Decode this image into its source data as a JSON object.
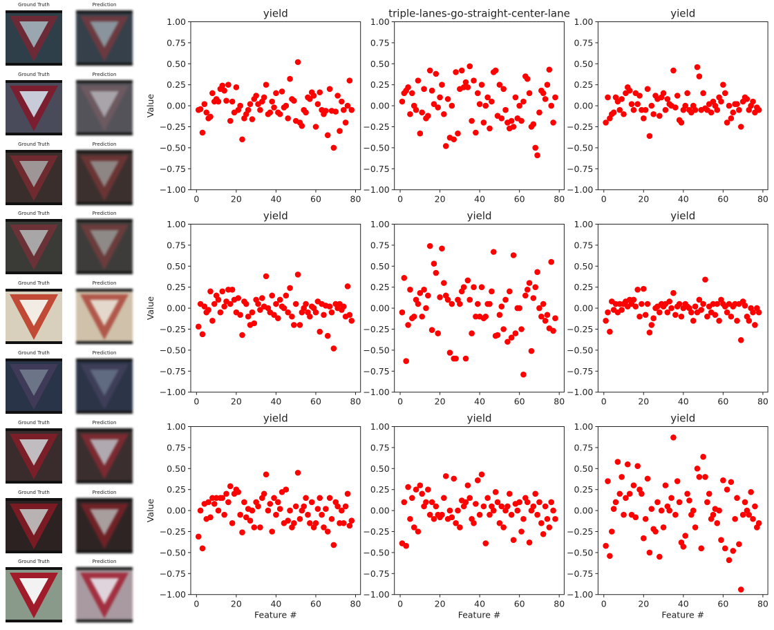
{
  "thumbnails": {
    "gt_label": "Ground Truth",
    "pred_label": "Prediction",
    "rows": [
      {
        "bg": "#2f3f4a",
        "sign": "#6b2a36",
        "inner": "#9aa7b0",
        "pbg": "#35404a",
        "psign": "#6a3a40",
        "pinner": "#8a949c"
      },
      {
        "bg": "#4a4b5a",
        "sign": "#7a1e30",
        "inner": "#c8ccd8",
        "pbg": "#55535a",
        "psign": "#6c5a60",
        "pinner": "#a8a4aa"
      },
      {
        "bg": "#3a2e2c",
        "sign": "#6e2a2e",
        "inner": "#9e9696",
        "pbg": "#3c302e",
        "psign": "#6a3434",
        "pinner": "#8e8684"
      },
      {
        "bg": "#3a3a36",
        "sign": "#6a3236",
        "inner": "#a8a6a6",
        "pbg": "#3e3c3a",
        "psign": "#6a3c3c",
        "pinner": "#8e8a88"
      },
      {
        "bg": "#d8d0bc",
        "sign": "#c04a36",
        "inner": "#f2ece4",
        "pbg": "#cfc1aa",
        "psign": "#b0584a",
        "pinner": "#e4d8cc"
      },
      {
        "bg": "#2a3448",
        "sign": "#3e3a58",
        "inner": "#6c7488",
        "pbg": "#2c3448",
        "psign": "#3e3e58",
        "pinner": "#606a80"
      },
      {
        "bg": "#3a2c2c",
        "sign": "#7a1e28",
        "inner": "#c0bcc0",
        "pbg": "#3a2e2e",
        "psign": "#7a2a30",
        "pinner": "#b0aab0"
      },
      {
        "bg": "#2c2222",
        "sign": "#7a1a22",
        "inner": "#b8b2b2",
        "pbg": "#2e2424",
        "psign": "#6e2226",
        "pinner": "#a89e9e"
      },
      {
        "bg": "#8a9a8a",
        "sign": "#a01c2a",
        "inner": "#f2f2f2",
        "pbg": "#a89aa0",
        "psign": "#a23040",
        "pinner": "#e0d4dc"
      }
    ]
  },
  "chart_data": [
    {
      "type": "scatter",
      "title": "yield",
      "ylabel": "Value",
      "xlabel": "",
      "x_start": 1,
      "xlim": [
        -2.9,
        82.5
      ],
      "ylim": [
        -1,
        1
      ],
      "xticks": [
        0,
        20,
        40,
        60,
        80
      ],
      "yticks": [
        "-1.00",
        "-0.75",
        "-0.50",
        "-0.25",
        "0.00",
        "0.25",
        "0.50",
        "0.75",
        "1.00"
      ],
      "color": "#ff0000",
      "values": [
        -0.05,
        -0.04,
        -0.32,
        0.02,
        -0.08,
        -0.15,
        -0.13,
        0.15,
        0.05,
        0.08,
        0.05,
        0.2,
        0.24,
        0.18,
        0.06,
        0.25,
        -0.18,
        0.05,
        -0.08,
        0.22,
        -0.05,
        0.0,
        -0.4,
        -0.15,
        -0.1,
        -0.05,
        0.02,
        -0.16,
        0.08,
        0.12,
        0.02,
        -0.05,
        0.05,
        0.1,
        0.25,
        -0.1,
        -0.08,
        0.05,
        -0.02,
        0.15,
        -0.08,
        -0.1,
        0.17,
        -0.02,
        0.0,
        -0.15,
        0.32,
        0.08,
        0.06,
        -0.18,
        0.52,
        -0.2,
        -0.24,
        -0.05,
        -0.08,
        0.1,
        0.08,
        0.16,
        0.12,
        -0.25,
        0.02,
        0.16,
        -0.05,
        -0.1,
        -0.06,
        -0.35,
        0.2,
        -0.06,
        -0.5,
        -0.07,
        0.12,
        -0.3,
        0.05,
        -0.05,
        -0.2,
        0.0,
        0.3,
        -0.05
      ]
    },
    {
      "type": "scatter",
      "title": "triple-lanes-go-straight-center-lane",
      "ylabel": "",
      "xlabel": "",
      "x_start": 1,
      "xlim": [
        -2.9,
        82.5
      ],
      "ylim": [
        -1,
        1
      ],
      "xticks": [
        0,
        20,
        40,
        60,
        80
      ],
      "yticks": [
        "-1.00",
        "-0.75",
        "-0.50",
        "-0.25",
        "0.00",
        "0.25",
        "0.50",
        "0.75",
        "1.00"
      ],
      "color": "#ff0000",
      "values": [
        0.05,
        0.15,
        0.18,
        0.22,
        -0.1,
        0.15,
        0.0,
        -0.05,
        0.3,
        -0.33,
        -0.08,
        0.2,
        -0.15,
        -0.12,
        0.42,
        0.18,
        0.02,
        0.38,
        -0.02,
        0.1,
        0.25,
        -0.1,
        -0.48,
        0.08,
        -0.38,
        0.0,
        -0.4,
        0.4,
        -0.33,
        0.2,
        0.42,
        0.22,
        0.28,
        0.22,
        0.47,
        -0.18,
        0.3,
        -0.32,
        0.15,
        0.02,
        0.25,
        -0.2,
        0.0,
        0.1,
        -0.27,
        0.05,
        0.4,
        0.42,
        -0.12,
        0.25,
        -0.15,
        0.2,
        -0.05,
        -0.2,
        -0.27,
        -0.18,
        -0.25,
        0.1,
        -0.15,
        0.0,
        -0.18,
        0.05,
        0.35,
        0.32,
        0.15,
        -0.25,
        -0.22,
        -0.5,
        -0.59,
        -0.08,
        0.18,
        0.15,
        0.08,
        0.25,
        0.43,
        0.0,
        -0.2,
        0.1
      ]
    },
    {
      "type": "scatter",
      "title": "yield",
      "ylabel": "",
      "xlabel": "",
      "x_start": 1,
      "xlim": [
        -2.9,
        82.5
      ],
      "ylim": [
        -1,
        1
      ],
      "xticks": [
        0,
        20,
        40,
        60,
        80
      ],
      "yticks": [
        "-1.00",
        "-0.75",
        "-0.50",
        "-0.25",
        "0.00",
        "0.25",
        "0.50",
        "0.75",
        "1.00"
      ],
      "color": "#ff0000",
      "values": [
        -0.2,
        0.1,
        -0.15,
        -0.1,
        -0.08,
        0.1,
        0.05,
        -0.05,
        0.08,
        -0.1,
        0.15,
        0.22,
        0.18,
        0.02,
        -0.05,
        0.15,
        0.02,
        0.12,
        -0.05,
        -0.15,
        -0.05,
        0.2,
        -0.36,
        0.0,
        -0.1,
        0.12,
        0.08,
        -0.12,
        0.1,
        0.15,
        -0.05,
        0.08,
        0.02,
        0.0,
        0.42,
        -0.02,
        0.12,
        -0.17,
        -0.2,
        -0.05,
        0.0,
        0.15,
        -0.05,
        -0.08,
        0.0,
        -0.05,
        0.46,
        0.35,
        -0.05,
        0.15,
        -0.03,
        -0.05,
        0.02,
        -0.08,
        0.05,
        0.0,
        -0.05,
        0.1,
        0.05,
        0.25,
        0.15,
        -0.2,
        0.0,
        -0.15,
        -0.08,
        0.02,
        0.02,
        -0.05,
        -0.25,
        0.05,
        0.1,
        0.08,
        -0.05,
        0.0,
        0.05,
        -0.08,
        -0.02,
        -0.05
      ]
    },
    {
      "type": "scatter",
      "title": "yield",
      "ylabel": "Value",
      "xlabel": "",
      "x_start": 1,
      "xlim": [
        -2.9,
        82.5
      ],
      "ylim": [
        -1,
        1
      ],
      "xticks": [
        0,
        20,
        40,
        60,
        80
      ],
      "yticks": [
        "-1.00",
        "-0.75",
        "-0.50",
        "-0.25",
        "0.00",
        "0.25",
        "0.50",
        "0.75",
        "1.00"
      ],
      "color": "#ff0000",
      "values": [
        -0.22,
        0.05,
        -0.31,
        0.02,
        -0.05,
        -0.02,
        0.2,
        -0.15,
        0.05,
        0.15,
        0.1,
        -0.05,
        0.2,
        0.02,
        0.08,
        0.22,
        0.05,
        0.22,
        0.1,
        -0.05,
        0.12,
        -0.08,
        -0.32,
        0.08,
        0.05,
        -0.1,
        -0.2,
        -0.05,
        -0.18,
        0.1,
        0.05,
        -0.02,
        0.12,
        0.02,
        0.38,
        0.0,
        -0.05,
        0.15,
        -0.08,
        0.05,
        -0.12,
        0.1,
        0.02,
        0.0,
        0.15,
        -0.05,
        0.24,
        -0.1,
        -0.2,
        0.05,
        0.4,
        -0.2,
        -0.05,
        0.0,
        0.05,
        -0.05,
        -0.1,
        0.02,
        0.0,
        -0.05,
        0.08,
        -0.28,
        0.05,
        -0.08,
        0.03,
        -0.33,
        0.02,
        -0.05,
        -0.48,
        0.05,
        0.0,
        0.05,
        -0.02,
        0.02,
        -0.1,
        0.26,
        -0.08,
        -0.15
      ]
    },
    {
      "type": "scatter",
      "title": "yield",
      "ylabel": "",
      "xlabel": "",
      "x_start": 1,
      "xlim": [
        -2.9,
        82.5
      ],
      "ylim": [
        -1,
        1
      ],
      "xticks": [
        0,
        20,
        40,
        60,
        80
      ],
      "yticks": [
        "-1.00",
        "-0.75",
        "-0.50",
        "-0.25",
        "0.00",
        "0.25",
        "0.50",
        "0.75",
        "1.00"
      ],
      "color": "#ff0000",
      "values": [
        -0.05,
        0.36,
        -0.63,
        -0.2,
        0.22,
        -0.12,
        -0.1,
        0.1,
        0.05,
        0.18,
        -0.1,
        0.22,
        0.0,
        0.15,
        0.74,
        -0.26,
        0.53,
        0.42,
        -0.3,
        0.13,
        0.71,
        0.3,
        0.15,
        0.1,
        -0.53,
        0.05,
        -0.6,
        -0.6,
        0.1,
        0.05,
        0.2,
        0.25,
        -0.6,
        0.33,
        0.1,
        -0.3,
        0.25,
        -0.1,
        0.05,
        -0.1,
        0.25,
        -0.12,
        -0.1,
        0.05,
        0.05,
        0.2,
        0.67,
        -0.33,
        -0.32,
        -0.08,
        0.02,
        -0.25,
        0.1,
        -0.4,
        0.2,
        -0.35,
        0.63,
        -0.3,
        0.0,
        0.0,
        -0.25,
        -0.79,
        0.15,
        0.22,
        0.3,
        -0.51,
        0.12,
        0.25,
        0.43,
        0.0,
        -0.1,
        0.05,
        -0.15,
        -0.08,
        -0.24,
        0.55,
        -0.27,
        -0.12
      ]
    },
    {
      "type": "scatter",
      "title": "yield",
      "ylabel": "",
      "xlabel": "",
      "x_start": 1,
      "xlim": [
        -2.9,
        82.5
      ],
      "ylim": [
        -1,
        1
      ],
      "xticks": [
        0,
        20,
        40,
        60,
        80
      ],
      "yticks": [
        "-1.00",
        "-0.75",
        "-0.50",
        "-0.25",
        "0.00",
        "0.25",
        "0.50",
        "0.75",
        "1.00"
      ],
      "color": "#ff0000",
      "values": [
        -0.15,
        -0.05,
        -0.28,
        0.08,
        -0.02,
        0.05,
        -0.05,
        0.05,
        -0.02,
        0.05,
        0.08,
        0.02,
        0.1,
        0.05,
        0.1,
        0.02,
        0.22,
        -0.1,
        0.05,
        0.23,
        -0.08,
        0.05,
        -0.29,
        -0.2,
        -0.12,
        0.0,
        0.02,
        -0.05,
        0.05,
        0.02,
        0.05,
        -0.05,
        0.08,
        0.0,
        0.18,
        -0.08,
        0.02,
        0.05,
        -0.1,
        0.0,
        0.05,
        0.02,
        0.0,
        -0.05,
        -0.15,
        0.02,
        -0.05,
        0.1,
        -0.02,
        0.05,
        0.34,
        -0.1,
        0.02,
        -0.05,
        0.05,
        -0.08,
        0.05,
        -0.15,
        0.1,
        0.05,
        0.02,
        -0.05,
        0.05,
        -0.1,
        0.02,
        0.05,
        -0.15,
        0.05,
        -0.38,
        0.08,
        0.03,
        -0.1,
        -0.15,
        0.0,
        -0.05,
        -0.2,
        0.0,
        -0.05
      ]
    },
    {
      "type": "scatter",
      "title": "yield",
      "ylabel": "Value",
      "xlabel": "Feature #",
      "x_start": 1,
      "xlim": [
        -2.9,
        82.5
      ],
      "ylim": [
        -1,
        1
      ],
      "xticks": [
        0,
        20,
        40,
        60,
        80
      ],
      "yticks": [
        "-1.00",
        "-0.75",
        "-0.50",
        "-0.25",
        "0.00",
        "0.25",
        "0.50",
        "0.75",
        "1.00"
      ],
      "color": "#ff0000",
      "values": [
        -0.31,
        0.0,
        -0.45,
        0.08,
        -0.1,
        0.1,
        -0.08,
        0.15,
        0.08,
        0.15,
        0.0,
        0.15,
        0.15,
        -0.05,
        0.2,
        0.1,
        0.29,
        -0.15,
        0.2,
        0.25,
        0.22,
        -0.05,
        -0.26,
        0.1,
        -0.08,
        0.02,
        -0.12,
        0.0,
        -0.2,
        0.1,
        0.05,
        -0.2,
        0.15,
        0.2,
        0.43,
        0.0,
        0.08,
        -0.25,
        0.15,
        -0.05,
        0.1,
        0.02,
        0.22,
        -0.15,
        0.25,
        -0.12,
        0.0,
        -0.2,
        -0.15,
        0.05,
        0.45,
        -0.1,
        0.0,
        0.05,
        0.15,
        -0.05,
        -0.15,
        0.1,
        -0.2,
        -0.15,
        0.02,
        0.15,
        -0.05,
        -0.2,
        0.02,
        -0.25,
        0.15,
        -0.1,
        -0.41,
        0.1,
        0.05,
        -0.15,
        0.0,
        -0.15,
        0.05,
        0.2,
        -0.18,
        -0.12
      ]
    },
    {
      "type": "scatter",
      "title": "yield",
      "ylabel": "",
      "xlabel": "Feature #",
      "x_start": 1,
      "xlim": [
        -2.9,
        82.5
      ],
      "ylim": [
        -1,
        1
      ],
      "xticks": [
        0,
        20,
        40,
        60,
        80
      ],
      "yticks": [
        "-1.00",
        "-0.75",
        "-0.50",
        "-0.25",
        "0.00",
        "0.25",
        "0.50",
        "0.75",
        "1.00"
      ],
      "color": "#ff0000",
      "values": [
        -0.39,
        0.1,
        -0.42,
        0.28,
        -0.1,
        0.15,
        -0.2,
        0.25,
        -0.25,
        0.3,
        0.2,
        0.05,
        0.1,
        0.25,
        -0.05,
        0.1,
        -0.1,
        0.05,
        -0.05,
        -0.08,
        -0.05,
        0.15,
        0.41,
        -0.1,
        0.0,
        -0.08,
        0.38,
        -0.15,
        0.0,
        -0.2,
        0.12,
        0.05,
        0.1,
        0.3,
        0.15,
        -0.1,
        -0.15,
        0.08,
        0.36,
        -0.05,
        0.43,
        0.05,
        -0.39,
        0.15,
        -0.05,
        0.05,
        0.0,
        0.22,
        0.1,
        -0.15,
        0.05,
        -0.2,
        0.0,
        0.05,
        0.2,
        -0.05,
        -0.35,
        0.08,
        0.0,
        0.1,
        -0.25,
        -0.1,
        0.15,
        0.1,
        -0.38,
        0.0,
        0.05,
        0.2,
        -0.05,
        0.1,
        -0.15,
        -0.28,
        0.05,
        -0.1,
        -0.2,
        0.1,
        0.0,
        -0.1
      ]
    },
    {
      "type": "scatter",
      "title": "yield",
      "ylabel": "",
      "xlabel": "Feature #",
      "x_start": 1,
      "xlim": [
        -2.9,
        82.5
      ],
      "ylim": [
        -1,
        1
      ],
      "xticks": [
        0,
        20,
        40,
        60,
        80
      ],
      "yticks": [
        "-1.00",
        "-0.75",
        "-0.50",
        "-0.25",
        "0.00",
        "0.25",
        "0.50",
        "0.75",
        "1.00"
      ],
      "color": "#ff0000",
      "values": [
        -0.42,
        0.35,
        -0.54,
        -0.25,
        0.02,
        0.1,
        0.58,
        0.2,
        0.4,
        -0.05,
        0.15,
        0.55,
        0.2,
        -0.05,
        0.3,
        -0.08,
        0.53,
        0.25,
        0.2,
        -0.33,
        -0.1,
        0.38,
        -0.5,
        0.02,
        -0.22,
        -0.25,
        0.1,
        -0.55,
        0.0,
        -0.2,
        0.3,
        0.05,
        0.0,
        0.15,
        0.87,
        -0.05,
        0.35,
        0.1,
        -0.38,
        -0.43,
        -0.3,
        0.2,
        0.12,
        -0.05,
        0.0,
        -0.2,
        0.5,
        0.4,
        -0.45,
        0.64,
        0.4,
        0.1,
        0.2,
        -0.1,
        -0.05,
        0.02,
        -0.15,
        0.0,
        -0.35,
        0.36,
        -0.45,
        0.25,
        -0.59,
        0.34,
        -0.48,
        -0.1,
        0.15,
        -0.4,
        -0.94,
        -0.05,
        0.1,
        0.0,
        -0.05,
        0.22,
        -0.1,
        0.05,
        -0.2,
        -0.15
      ]
    }
  ]
}
